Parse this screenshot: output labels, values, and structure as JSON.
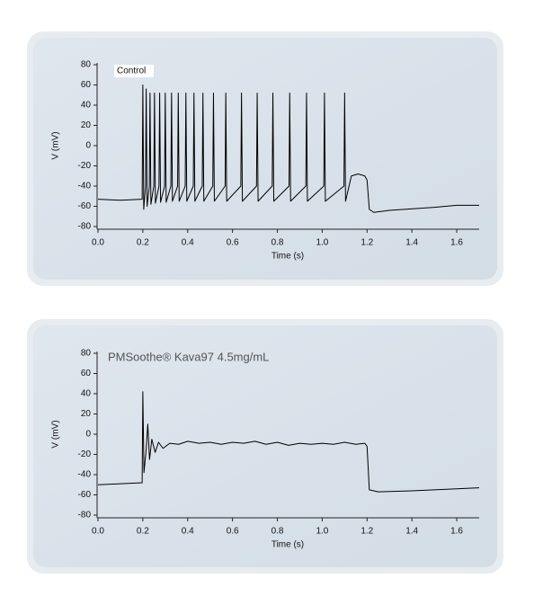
{
  "chart_data": [
    {
      "type": "line",
      "title": "Control",
      "xlabel": "Time (s)",
      "ylabel": "V (mV)",
      "xlim": [
        0,
        1.7
      ],
      "ylim": [
        -80,
        80
      ],
      "xticks": [
        {
          "value": 0,
          "label": "0.0"
        },
        0.2,
        0.4,
        0.6,
        0.8,
        {
          "value": 1,
          "label": "1.0"
        },
        1.2,
        1.4,
        1.6
      ],
      "yticks": [
        -80,
        -60,
        -40,
        -20,
        0,
        20,
        40,
        60,
        80
      ],
      "x": [
        0,
        0.1,
        0.197,
        0.2,
        0.204,
        0.212,
        0.215,
        0.219,
        0.229,
        0.232,
        0.236,
        0.249,
        0.252,
        0.256,
        0.272,
        0.275,
        0.279,
        0.297,
        0.3,
        0.304,
        0.325,
        0.328,
        0.332,
        0.355,
        0.358,
        0.362,
        0.389,
        0.392,
        0.396,
        0.425,
        0.428,
        0.432,
        0.465,
        0.468,
        0.472,
        0.512,
        0.515,
        0.519,
        0.567,
        0.57,
        0.574,
        0.637,
        0.64,
        0.644,
        0.707,
        0.71,
        0.714,
        0.777,
        0.78,
        0.784,
        0.852,
        0.855,
        0.859,
        0.927,
        0.93,
        0.934,
        1.007,
        1.01,
        1.014,
        1.097,
        1.1,
        1.104,
        1.13,
        1.16,
        1.19,
        1.2,
        1.21,
        1.23,
        1.3,
        1.5,
        1.6,
        1.7
      ],
      "values": [
        -53,
        -54,
        -53,
        60,
        -63,
        -40,
        56,
        -60,
        -40,
        52,
        -58,
        -40,
        52,
        -57,
        -40,
        52,
        -56,
        -40,
        52,
        -56,
        -40,
        52,
        -55,
        -40,
        52,
        -55,
        -40,
        52,
        -55,
        -40,
        52,
        -55,
        -40,
        52,
        -55,
        -40,
        52,
        -55,
        -40,
        52,
        -55,
        -40,
        52,
        -55,
        -40,
        52,
        -55,
        -40,
        52,
        -55,
        -40,
        52,
        -55,
        -40,
        52,
        -55,
        -40,
        52,
        -55,
        -40,
        52,
        -55,
        -30,
        -28,
        -30,
        -34,
        -63,
        -66,
        -64,
        -61,
        -59,
        -59
      ],
      "color": "#000000"
    },
    {
      "type": "line",
      "title": "PMSoothe® Kava97 4.5mg/mL",
      "xlabel": "Time (s)",
      "ylabel": "V (mV)",
      "xlim": [
        0,
        1.7
      ],
      "ylim": [
        -80,
        80
      ],
      "xticks": [
        {
          "value": 0,
          "label": "0.0"
        },
        0.2,
        0.4,
        0.6,
        0.8,
        {
          "value": 1,
          "label": "1.0"
        },
        1.2,
        1.4,
        1.6
      ],
      "yticks": [
        -80,
        -60,
        -40,
        -20,
        0,
        20,
        40,
        60,
        80
      ],
      "x": [
        0,
        0.1,
        0.197,
        0.2,
        0.205,
        0.215,
        0.222,
        0.23,
        0.24,
        0.255,
        0.27,
        0.29,
        0.32,
        0.36,
        0.4,
        0.45,
        0.5,
        0.55,
        0.6,
        0.65,
        0.7,
        0.75,
        0.8,
        0.85,
        0.9,
        0.95,
        1.0,
        1.05,
        1.1,
        1.15,
        1.19,
        1.2,
        1.21,
        1.25,
        1.4,
        1.6,
        1.7
      ],
      "values": [
        -50,
        -49,
        -48,
        42,
        -38,
        -15,
        10,
        -25,
        -5,
        -18,
        -8,
        -14,
        -9,
        -10,
        -7,
        -9,
        -8,
        -10,
        -8,
        -9,
        -7,
        -10,
        -8,
        -11,
        -9,
        -10,
        -9,
        -10,
        -8,
        -10,
        -9,
        -12,
        -55,
        -57,
        -56,
        -54,
        -53
      ],
      "color": "#000000"
    }
  ]
}
